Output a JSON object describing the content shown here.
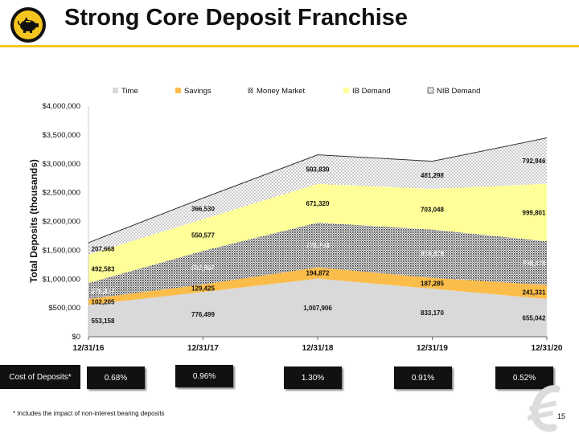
{
  "header": {
    "title": "Strong Core Deposit Franchise",
    "logo_icon": "piggy-bank-icon"
  },
  "chart_data": {
    "type": "area",
    "stacked": true,
    "x": [
      "12/31/16",
      "12/31/17",
      "12/31/18",
      "12/31/19",
      "12/31/20"
    ],
    "series": [
      {
        "name": "Time",
        "color": "#d9d9d9",
        "values": [
          553158,
          776499,
          1007906,
          833170,
          655042
        ],
        "labels": [
          "553,158",
          "776,499",
          "1,007,906",
          "833,170",
          "655,042"
        ]
      },
      {
        "name": "Savings",
        "color": "#fbbd4a",
        "values": [
          102205,
          129425,
          194872,
          187285,
          241331
        ],
        "labels": [
          "102,205",
          "129,425",
          "194,872",
          "187,285",
          "241,331"
        ]
      },
      {
        "name": "Money Market",
        "color": "#333333",
        "values": [
          276337,
          582907,
          776793,
          838378,
          758479
        ],
        "labels": [
          "276,337",
          "582,907",
          "776,793",
          "838,378",
          "758,479"
        ]
      },
      {
        "name": "IB Demand",
        "color": "#ffff99",
        "values": [
          492583,
          550577,
          671320,
          703048,
          999801
        ],
        "labels": [
          "492,583",
          "550,577",
          "671,320",
          "703,048",
          "999,801"
        ]
      },
      {
        "name": "NIB Demand",
        "color": "#ffffff",
        "values": [
          207668,
          366530,
          503830,
          481298,
          792946
        ],
        "labels": [
          "207,668",
          "366,530",
          "503,830",
          "481,298",
          "792,946"
        ]
      }
    ],
    "ylabel": "Total Deposits (thousands)",
    "ylim": [
      0,
      4000000
    ],
    "yticks": [
      "$0",
      "$500,000",
      "$1,000,000",
      "$1,500,000",
      "$2,000,000",
      "$2,500,000",
      "$3,000,000",
      "$3,500,000",
      "$4,000,000"
    ],
    "legend": "top"
  },
  "cost_of_deposits": {
    "label": "Cost of Deposits*",
    "values": [
      "0.68%",
      "0.96%",
      "1.30%",
      "0.91%",
      "0.52%"
    ]
  },
  "footnote": "* Includes the impact of non-interest bearing deposits",
  "page_number": "15"
}
